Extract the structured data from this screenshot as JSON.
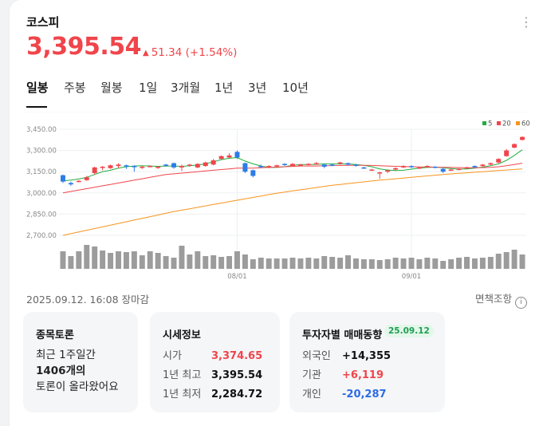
{
  "stock": {
    "name": "코스피",
    "price": "3,395.54",
    "change": "51.34 (+1.54%)"
  },
  "tabs": [
    "일봉",
    "주봉",
    "월봉",
    "1일",
    "3개월",
    "1년",
    "3년",
    "10년"
  ],
  "active_tab": "일봉",
  "legend": [
    {
      "label": "5",
      "color": "#1fae3f"
    },
    {
      "label": "20",
      "color": "#f0454b"
    },
    {
      "label": "60",
      "color": "#f7941d"
    }
  ],
  "chart_data": {
    "type": "candlestick",
    "y_ticks": [
      "3,450.00",
      "3,300.00",
      "3,150.00",
      "3,000.00",
      "2,850.00",
      "2,700.00"
    ],
    "ylim": [
      2700,
      3450
    ],
    "x_ticks": [
      "08/01",
      "09/01"
    ],
    "candles": [
      [
        3125,
        3080,
        3130,
        3070
      ],
      [
        3070,
        3060,
        3080,
        3050
      ],
      [
        3080,
        3085,
        3090,
        3075
      ],
      [
        3090,
        3110,
        3120,
        3085
      ],
      [
        3140,
        3180,
        3185,
        3130
      ],
      [
        3180,
        3185,
        3190,
        3160
      ],
      [
        3175,
        3195,
        3200,
        3170
      ],
      [
        3190,
        3200,
        3210,
        3175
      ],
      [
        3195,
        3190,
        3200,
        3170
      ],
      [
        3190,
        3185,
        3195,
        3150
      ],
      [
        3180,
        3185,
        3190,
        3170
      ],
      [
        3190,
        3190,
        3195,
        3185
      ],
      [
        3180,
        3185,
        3190,
        3170
      ],
      [
        3200,
        3195,
        3205,
        3185
      ],
      [
        3210,
        3180,
        3215,
        3170
      ],
      [
        3180,
        3190,
        3200,
        3155
      ],
      [
        3195,
        3200,
        3205,
        3185
      ],
      [
        3180,
        3205,
        3210,
        3175
      ],
      [
        3190,
        3215,
        3220,
        3185
      ],
      [
        3200,
        3230,
        3240,
        3195
      ],
      [
        3240,
        3260,
        3265,
        3235
      ],
      [
        3250,
        3265,
        3280,
        3245
      ],
      [
        3290,
        3250,
        3300,
        3240
      ],
      [
        3210,
        3150,
        3215,
        3140
      ],
      [
        3160,
        3120,
        3165,
        3110
      ],
      [
        3190,
        3185,
        3200,
        3175
      ],
      [
        3185,
        3190,
        3195,
        3175
      ],
      [
        3190,
        3195,
        3200,
        3180
      ],
      [
        3205,
        3200,
        3210,
        3190
      ],
      [
        3190,
        3205,
        3210,
        3185
      ],
      [
        3195,
        3200,
        3205,
        3190
      ],
      [
        3200,
        3205,
        3210,
        3195
      ],
      [
        3210,
        3210,
        3220,
        3200
      ],
      [
        3200,
        3185,
        3205,
        3175
      ],
      [
        3200,
        3195,
        3205,
        3190
      ],
      [
        3210,
        3215,
        3220,
        3200
      ],
      [
        3210,
        3200,
        3215,
        3195
      ],
      [
        3200,
        3195,
        3205,
        3185
      ],
      [
        3180,
        3175,
        3185,
        3170
      ],
      [
        3160,
        3165,
        3170,
        3155
      ],
      [
        3140,
        3145,
        3150,
        3100
      ],
      [
        3150,
        3160,
        3165,
        3140
      ],
      [
        3165,
        3175,
        3180,
        3160
      ],
      [
        3180,
        3190,
        3195,
        3175
      ],
      [
        3190,
        3185,
        3195,
        3175
      ],
      [
        3175,
        3180,
        3185,
        3170
      ],
      [
        3185,
        3190,
        3195,
        3180
      ],
      [
        3185,
        3180,
        3190,
        3175
      ],
      [
        3170,
        3150,
        3175,
        3140
      ],
      [
        3160,
        3165,
        3170,
        3155
      ],
      [
        3165,
        3170,
        3175,
        3160
      ],
      [
        3175,
        3180,
        3185,
        3170
      ],
      [
        3190,
        3185,
        3195,
        3180
      ],
      [
        3190,
        3200,
        3205,
        3185
      ],
      [
        3200,
        3210,
        3215,
        3195
      ],
      [
        3215,
        3240,
        3245,
        3210
      ],
      [
        3260,
        3300,
        3310,
        3255
      ],
      [
        3320,
        3345,
        3350,
        3315
      ],
      [
        3374.65,
        3395.54,
        3400,
        3370
      ]
    ],
    "volume": [
      22,
      16,
      22,
      30,
      28,
      23,
      20,
      22,
      21,
      22,
      17,
      22,
      20,
      16,
      14,
      29,
      18,
      22,
      16,
      17,
      15,
      16,
      22,
      18,
      12,
      14,
      13,
      13,
      13,
      14,
      13,
      14,
      13,
      16,
      15,
      14,
      17,
      13,
      12,
      12,
      11,
      12,
      14,
      13,
      14,
      12,
      14,
      13,
      10,
      12,
      14,
      15,
      13,
      14,
      15,
      19,
      21,
      24,
      18
    ],
    "ma": [
      {
        "name": "5",
        "color": "#1fae3f",
        "values": [
          3085,
          3090,
          3098,
          3110,
          3130,
          3150,
          3160,
          3175,
          3185,
          3190,
          3192,
          3190,
          3188,
          3190,
          3190,
          3188,
          3192,
          3197,
          3205,
          3220,
          3235,
          3245,
          3250,
          3225,
          3205,
          3190,
          3180,
          3180,
          3185,
          3195,
          3200,
          3200,
          3202,
          3205,
          3205,
          3205,
          3205,
          3200,
          3195,
          3185,
          3170,
          3162,
          3158,
          3160,
          3168,
          3175,
          3180,
          3182,
          3178,
          3172,
          3168,
          3170,
          3175,
          3182,
          3192,
          3205,
          3230,
          3265,
          3305
        ]
      },
      {
        "name": "20",
        "color": "#f0454b",
        "values": [
          3000,
          3010,
          3020,
          3030,
          3040,
          3050,
          3060,
          3070,
          3080,
          3090,
          3100,
          3110,
          3120,
          3130,
          3135,
          3140,
          3145,
          3150,
          3155,
          3160,
          3165,
          3170,
          3175,
          3175,
          3175,
          3178,
          3180,
          3182,
          3185,
          3187,
          3190,
          3190,
          3190,
          3192,
          3193,
          3194,
          3195,
          3195,
          3195,
          3194,
          3192,
          3190,
          3188,
          3186,
          3185,
          3184,
          3183,
          3182,
          3181,
          3180,
          3179,
          3178,
          3178,
          3179,
          3181,
          3185,
          3192,
          3200,
          3210
        ]
      },
      {
        "name": "60",
        "color": "#f7941d",
        "values": [
          2700,
          2712,
          2724,
          2736,
          2748,
          2760,
          2772,
          2784,
          2796,
          2808,
          2820,
          2832,
          2844,
          2856,
          2868,
          2878,
          2888,
          2898,
          2908,
          2918,
          2928,
          2938,
          2948,
          2958,
          2968,
          2978,
          2988,
          2998,
          3006,
          3014,
          3022,
          3030,
          3038,
          3046,
          3054,
          3060,
          3066,
          3072,
          3078,
          3084,
          3090,
          3095,
          3100,
          3105,
          3110,
          3115,
          3120,
          3125,
          3130,
          3134,
          3138,
          3142,
          3146,
          3150,
          3154,
          3158,
          3162,
          3166,
          3170
        ]
      }
    ]
  },
  "timestamp": "2025.09.12. 16:08 장마감",
  "disclaimer": "면책조항",
  "discussion": {
    "title": "종목토론",
    "line1": "최근 1주일간",
    "line2": "1406개의",
    "line3": "토론이 올라왔어요"
  },
  "market_info": {
    "title": "시세정보",
    "rows": [
      {
        "label": "시가",
        "value": "3,374.65"
      },
      {
        "label": "1년 최고",
        "value": "3,395.54"
      },
      {
        "label": "1년 최저",
        "value": "2,284.72"
      }
    ]
  },
  "investor": {
    "title": "투자자별 매매동향",
    "date": "25.09.12",
    "rows": [
      {
        "label": "외국인",
        "value": "+14,355"
      },
      {
        "label": "기관",
        "value": "+6,119"
      },
      {
        "label": "개인",
        "value": "-20,287"
      }
    ]
  }
}
